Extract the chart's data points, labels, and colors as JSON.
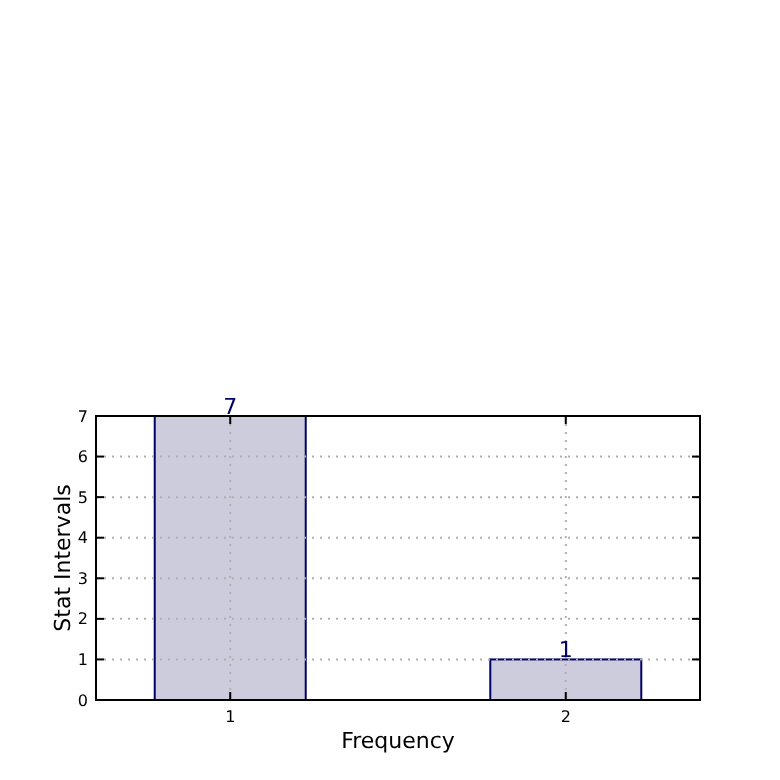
{
  "chart_data": {
    "type": "bar",
    "xlabel": "Frequency",
    "ylabel": "Stat Intervals",
    "categories": [
      "1",
      "2"
    ],
    "values": [
      7,
      1
    ],
    "color": "#ccccdd",
    "ylim": [
      0,
      7
    ],
    "yticks": [
      0,
      1,
      2,
      3,
      4,
      5,
      6,
      7
    ],
    "grid": true,
    "data_labels": true
  }
}
